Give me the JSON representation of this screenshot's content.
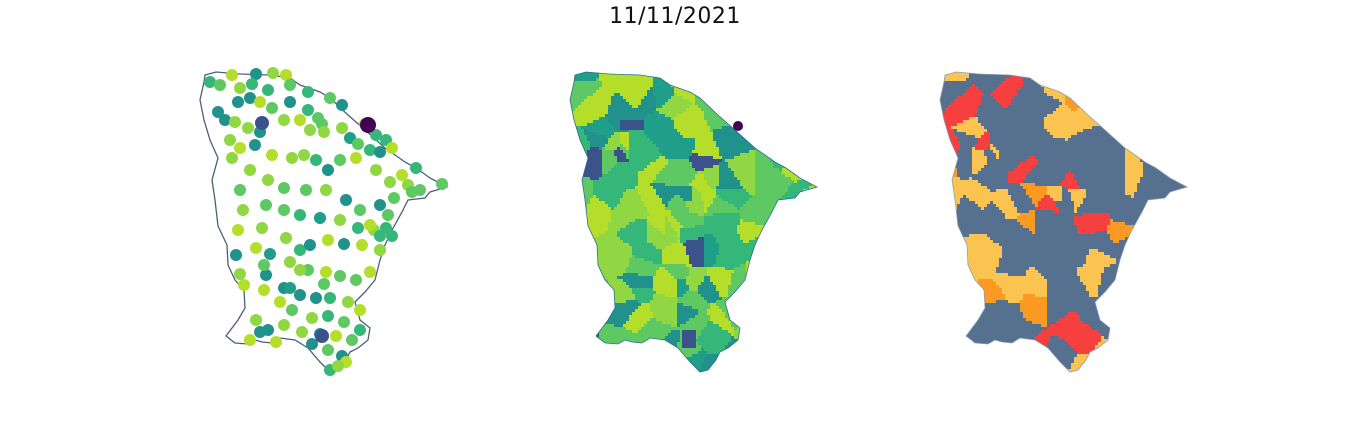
{
  "figure": {
    "title": "11/11/2021"
  },
  "colors": {
    "outline": "#4a5f7a",
    "viridis_ramp": [
      "#440154",
      "#3b528b",
      "#21918c",
      "#1f9e89",
      "#35b779",
      "#5ec962",
      "#90d743",
      "#b5de2b"
    ],
    "class_colors": {
      "slate": "#56708f",
      "yellow": "#fbc350",
      "orange": "#fa9a22",
      "red": "#f6403f"
    }
  },
  "maps": [
    {
      "id": "stations",
      "type": "point-map"
    },
    {
      "id": "choropleth",
      "type": "choropleth-viridis"
    },
    {
      "id": "classes",
      "type": "choropleth-categorical"
    }
  ]
}
